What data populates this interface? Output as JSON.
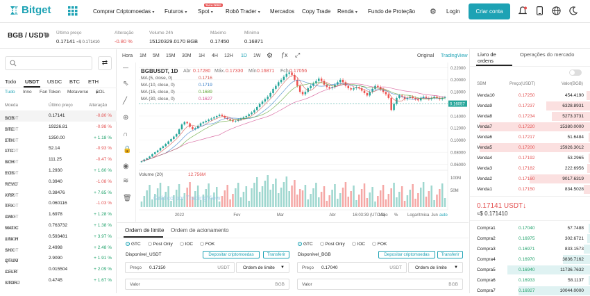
{
  "brand": {
    "name": "Bitget",
    "accent": "#1da2b4",
    "up": "#20a26b",
    "down": "#e35151"
  },
  "nav": {
    "items": [
      "Comprar Criptomoedas",
      "Futuros",
      "Spot",
      "Robô Trader",
      "Mercados",
      "Copy Trade",
      "Renda",
      "Fundo de Proteção"
    ],
    "spot_badge": "TAXA ZERO",
    "login": "Login",
    "signup": "Criar conta"
  },
  "ticker": {
    "pair": "BGB / USDT",
    "last_label": "Último preço",
    "last_value": "0.17141",
    "last_fiat": "≈$ 0.171410",
    "change_label": "Alteração",
    "change_value": "-0.80 %",
    "vol_label": "Volume 24h",
    "vol_value": "15120329.0170 BGB",
    "high_label": "Máximo",
    "high_value": "0.17450",
    "low_label": "Mínimo",
    "low_value": "0.16871"
  },
  "market": {
    "quote_tabs": [
      "Todo",
      "USDT",
      "USDC",
      "BTC",
      "ETH"
    ],
    "filter_tabs": [
      "Tudo",
      "Inno",
      "Fan Token",
      "Metaverse",
      "SOL"
    ],
    "headers": [
      "Moeda",
      "Último preço",
      "Alteração"
    ],
    "rows": [
      {
        "coin": "BGB",
        "quote": "/USDT",
        "price": "0.17141",
        "change": "-0.80 %",
        "dir": "down"
      },
      {
        "coin": "BTC",
        "quote": "/USDT",
        "price": "19226.81",
        "change": "-0.98 %",
        "dir": "down"
      },
      {
        "coin": "ETH",
        "quote": "/USDT",
        "price": "1350.00",
        "change": "+ 1.18 %",
        "dir": "up"
      },
      {
        "coin": "LTC",
        "quote": "/USDT",
        "price": "52.14",
        "change": "-0.93 %",
        "dir": "down"
      },
      {
        "coin": "BCH",
        "quote": "/USDT",
        "price": "111.25",
        "change": "-0.47 %",
        "dir": "down"
      },
      {
        "coin": "EOS",
        "quote": "/USDT",
        "price": "1.2930",
        "change": "+ 1.60 %",
        "dir": "up"
      },
      {
        "coin": "REVO",
        "quote": "/USDT",
        "price": "0.3940",
        "change": "-1.08 %",
        "dir": "down"
      },
      {
        "coin": "XRP",
        "quote": "/USDT",
        "price": "0.38476",
        "change": "+ 7.65 %",
        "dir": "up"
      },
      {
        "coin": "TRX",
        "quote": "/USDT",
        "price": "0.060116",
        "change": "-1.03 %",
        "dir": "down"
      },
      {
        "coin": "OMG",
        "quote": "/USDT",
        "price": "1.6978",
        "change": "+ 1.28 %",
        "dir": "up"
      },
      {
        "coin": "MATIC",
        "quote": "/USDT",
        "price": "0.763732",
        "change": "+ 1.38 %",
        "dir": "up"
      },
      {
        "coin": "1INCH",
        "quote": "/USDT",
        "price": "0.593481",
        "change": "+ 3.97 %",
        "dir": "up"
      },
      {
        "coin": "SNX",
        "quote": "/USDT",
        "price": "2.4998",
        "change": "+ 2.48 %",
        "dir": "up"
      },
      {
        "coin": "QTUM",
        "quote": "/USDT",
        "price": "2.9090",
        "change": "+ 1.91 %",
        "dir": "up"
      },
      {
        "coin": "CELR",
        "quote": "/USDT",
        "price": "0.015504",
        "change": "+ 2.09 %",
        "dir": "up"
      },
      {
        "coin": "STORJ",
        "quote": "/USDT",
        "price": "0.4745",
        "change": "+ 1.67 %",
        "dir": "up"
      }
    ]
  },
  "chart_toolbar": {
    "intervals": [
      "Hora",
      "1M",
      "5M",
      "15M",
      "30M",
      "1H",
      "4H",
      "12H",
      "1D",
      "1W"
    ],
    "views": [
      "Original",
      "TradingView"
    ]
  },
  "chart_legend": {
    "symbol": "BGBUSDT, 1D",
    "open_label": "Abr",
    "open": "0.17280",
    "high_label": "Máx.",
    "high": "0.17330",
    "low_label": "Mín",
    "low": "0.16871",
    "close_label": "Fch",
    "close": "0.17056",
    "ma": [
      {
        "label": "MA (5, close, 0)",
        "value": "0.1716"
      },
      {
        "label": "MA (10, close, 0)",
        "value": "0.1719"
      },
      {
        "label": "MA (15, close, 0)",
        "value": "0.1689"
      },
      {
        "label": "MA (30, close, 0)",
        "value": "0.1627"
      }
    ],
    "volume_label": "Volume (20)",
    "volume_value": "12.756M",
    "watermark": "Gráfico por TradingView"
  },
  "chart_data": {
    "type": "candlestick",
    "y_ticks": [
      "0.22000",
      "0.20000",
      "0.18000",
      "0.16000",
      "0.14000",
      "0.12000",
      "0.10000",
      "0.08000",
      "0.06000"
    ],
    "y_range": [
      0.056,
      0.224
    ],
    "current_price_tag": "0.16057",
    "volume_ticks": [
      "100M",
      "50M"
    ],
    "x_ticks": [
      "2022",
      "Fev",
      "Mar",
      "Abr",
      "Maio",
      "Jun"
    ],
    "timestamp": "16:03:39 (UTC-3)",
    "scale_options": [
      "%",
      "Logarítmica",
      "auto"
    ],
    "closes": [
      0.065,
      0.068,
      0.07,
      0.073,
      0.077,
      0.08,
      0.083,
      0.087,
      0.09,
      0.094,
      0.098,
      0.102,
      0.106,
      0.11,
      0.118,
      0.126,
      0.13,
      0.128,
      0.122,
      0.118,
      0.12,
      0.124,
      0.128,
      0.13,
      0.132,
      0.134,
      0.136,
      0.138,
      0.14,
      0.142,
      0.14,
      0.137,
      0.135,
      0.133,
      0.131,
      0.132,
      0.134,
      0.136,
      0.138,
      0.14,
      0.143,
      0.146,
      0.15,
      0.155,
      0.16,
      0.164,
      0.168,
      0.172,
      0.178,
      0.185,
      0.19,
      0.196,
      0.2,
      0.205,
      0.21,
      0.212,
      0.208,
      0.2,
      0.19,
      0.18,
      0.176,
      0.18,
      0.186,
      0.19,
      0.194,
      0.198,
      0.202,
      0.198,
      0.192,
      0.188,
      0.186,
      0.188,
      0.192,
      0.196,
      0.2,
      0.196,
      0.19,
      0.186,
      0.184,
      0.186,
      0.188,
      0.186,
      0.182,
      0.178,
      0.174,
      0.18,
      0.185,
      0.19,
      0.188,
      0.184,
      0.18,
      0.176,
      0.17,
      0.15,
      0.16,
      0.17,
      0.174,
      0.172,
      0.168,
      0.17,
      0.172,
      0.17,
      0.168,
      0.166,
      0.17,
      0.172,
      0.17,
      0.168,
      0.17,
      0.172,
      0.17,
      0.168,
      0.17,
      0.171
    ]
  },
  "order_panel": {
    "tabs": [
      "Ordem de limite",
      "Ordem de acionamento"
    ],
    "tif": [
      "GTC",
      "Post Only",
      "IOC",
      "FOK"
    ],
    "buy": {
      "available": "Disponível_USDT",
      "deposit": "Depositar criptomoedas",
      "transfer": "Transferir",
      "price_label": "Preço",
      "price": "0.17150",
      "unit": "USDT",
      "type": "Ordem de limite",
      "value_label": "Valor",
      "value_unit": "BGB"
    },
    "sell": {
      "available": "Disponível_BGB",
      "deposit": "Depositar criptomoedas",
      "transfer": "Transferir",
      "price_label": "Preço",
      "price": "0.17040",
      "unit": "USDT",
      "type": "Ordem de limite",
      "value_label": "Valor",
      "value_unit": "BGB"
    }
  },
  "orderbook": {
    "tabs": [
      "Livro de ordens",
      "Operações do mercado"
    ],
    "headers": [
      "SBM",
      "Preço(USDT)",
      "Valor(BGB)"
    ],
    "asks": [
      {
        "label": "Venda10",
        "price": "0.17250",
        "amount": "454.4190",
        "depth": 0.04
      },
      {
        "label": "Venda9",
        "price": "0.17237",
        "amount": "6328.8931",
        "depth": 0.4
      },
      {
        "label": "Venda8",
        "price": "0.17234",
        "amount": "5273.3731",
        "depth": 0.35
      },
      {
        "label": "Venda7",
        "price": "0.17220",
        "amount": "15380.0000",
        "depth": 1
      },
      {
        "label": "Venda6",
        "price": "0.17217",
        "amount": "51.6484",
        "depth": 0.02
      },
      {
        "label": "Venda5",
        "price": "0.17200",
        "amount": "15926.3012",
        "depth": 1
      },
      {
        "label": "Venda4",
        "price": "0.17192",
        "amount": "53.2965",
        "depth": 0.02
      },
      {
        "label": "Venda3",
        "price": "0.17182",
        "amount": "222.6956",
        "depth": 0.03
      },
      {
        "label": "Venda2",
        "price": "0.17160",
        "amount": "9017.6319",
        "depth": 0.55
      },
      {
        "label": "Venda1",
        "price": "0.17150",
        "amount": "834.5028",
        "depth": 0.06
      }
    ],
    "last_price": "0.17141 USDT↓",
    "last_fiat": "≈$ 0.171410",
    "bids": [
      {
        "label": "Compra1",
        "price": "0.17040",
        "amount": "57.7488",
        "depth": 0.02
      },
      {
        "label": "Compra2",
        "price": "0.16975",
        "amount": "302.6721",
        "depth": 0.03
      },
      {
        "label": "Compra3",
        "price": "0.16971",
        "amount": "833.1573",
        "depth": 0.06
      },
      {
        "label": "Compra4",
        "price": "0.16970",
        "amount": "3836.7162",
        "depth": 0.25
      },
      {
        "label": "Compra5",
        "price": "0.16940",
        "amount": "11736.7632",
        "depth": 0.75
      },
      {
        "label": "Compra6",
        "price": "0.16933",
        "amount": "58.1137",
        "depth": 0.02
      },
      {
        "label": "Compra7",
        "price": "0.16927",
        "amount": "10044.0000",
        "depth": 0.65
      }
    ]
  }
}
